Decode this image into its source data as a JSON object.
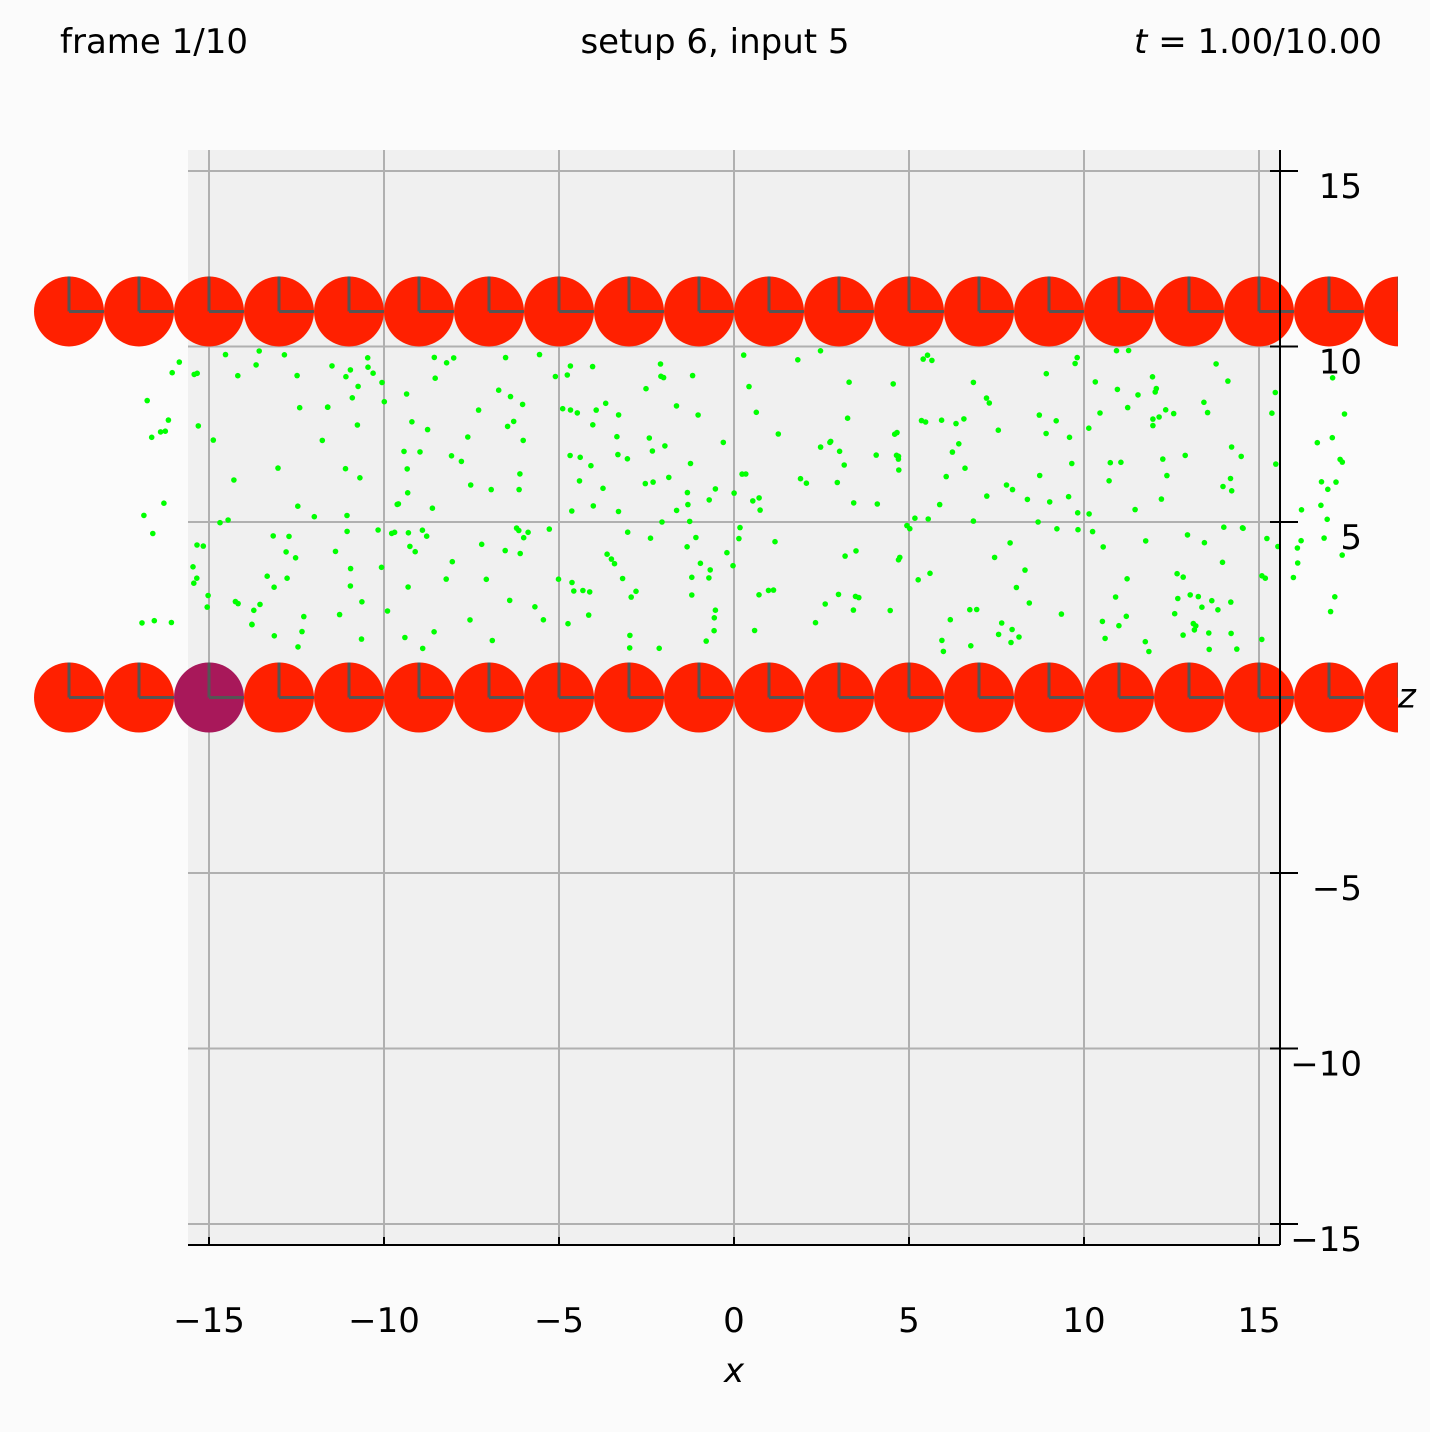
{
  "header": {
    "frame_label": "frame  1/10",
    "setup_label": "setup 6, input 5",
    "time_label": "t = 1.00/10.00"
  },
  "chart_data": {
    "type": "scatter",
    "xlabel": "x",
    "ylabel": "z",
    "xlim": [
      -15.6,
      15.6
    ],
    "ylim": [
      -15.6,
      15.6
    ],
    "xticks": [
      -15,
      -10,
      -5,
      0,
      5,
      10,
      15
    ],
    "yticks": [
      -15,
      -10,
      -5,
      5,
      10,
      15
    ],
    "grid": true,
    "colors": {
      "background": "#fbfbfb",
      "axes_face": "#f0f0f0",
      "grid": "#b0b0b0",
      "disk": "#ff2000",
      "highlight_disk": "#a8185a",
      "marker_line": "#555555",
      "particles": "#00ff00"
    },
    "disk_radius": 1.0,
    "disk_rows": [
      {
        "z": 11,
        "x": [
          -19,
          -17,
          -15,
          -13,
          -11,
          -9,
          -7,
          -5,
          -3,
          -1,
          1,
          3,
          5,
          7,
          9,
          11,
          13,
          15,
          17,
          19
        ]
      },
      {
        "z": 0,
        "x": [
          -19,
          -17,
          -15,
          -13,
          -11,
          -9,
          -7,
          -5,
          -3,
          -1,
          1,
          3,
          5,
          7,
          9,
          11,
          13,
          15,
          17,
          19
        ],
        "highlight_x": -15
      }
    ],
    "particles": {
      "count": 420,
      "x_range": [
        -17,
        17.5
      ],
      "z_range": [
        1.3,
        9.9
      ],
      "marker_size": 2
    }
  }
}
